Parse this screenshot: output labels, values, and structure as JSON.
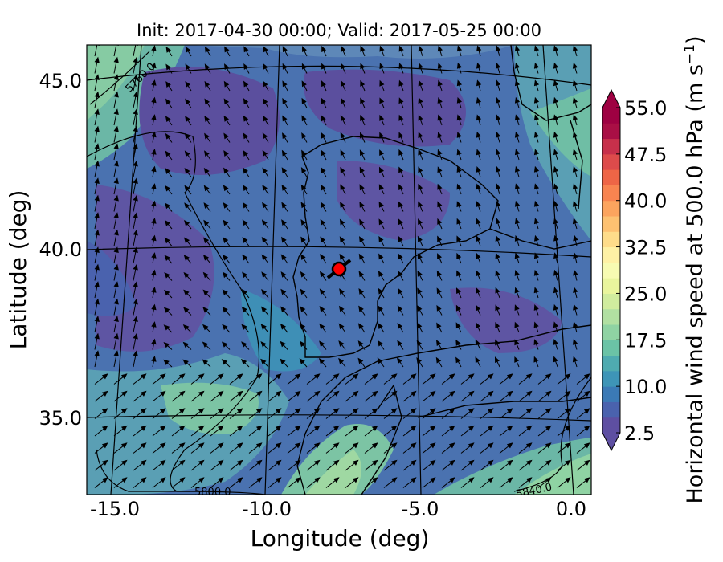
{
  "title": "Init: 2017-04-30 00:00; Valid: 2017-05-25 00:00",
  "axes": {
    "xlabel": "Longitude (deg)",
    "ylabel": "Latitude (deg)",
    "xticks": [
      "-15.0",
      "-10.0",
      "-5.0",
      "0.0"
    ],
    "yticks": [
      "45.0",
      "40.0",
      "35.0"
    ],
    "xlim": [
      -16.0,
      0.2
    ],
    "ylim": [
      32.8,
      46.1
    ]
  },
  "colorbar": {
    "label": "Horizontal wind speed at 500.0 hPa (m s$^{-1}$)",
    "label_main": "Horizontal wind speed at 500.0 hPa (m s",
    "label_sup": "−1",
    "label_close": ")",
    "ticks": [
      "55.0",
      "47.5",
      "40.0",
      "32.5",
      "25.0",
      "17.5",
      "10.0",
      "2.5"
    ],
    "tick_values": [
      55.0,
      47.5,
      40.0,
      32.5,
      25.0,
      17.5,
      10.0,
      2.5
    ],
    "range": [
      2.5,
      55.0
    ],
    "extend": "both",
    "colormap": "Spectral_r",
    "colors": [
      "#5e4fa2",
      "#4a62ae",
      "#3b7ab6",
      "#3e95b7",
      "#4fabb0",
      "#6bc3a6",
      "#8fd3a3",
      "#b1e0a2",
      "#d0ec9e",
      "#e9f59d",
      "#f7fbb2",
      "#fef1a5",
      "#fedc8a",
      "#fdc171",
      "#fca45e",
      "#f88450",
      "#ee6546",
      "#dd4b4b",
      "#c7304b",
      "#a90f45",
      "#9e0142"
    ]
  },
  "contours": [
    {
      "label": "5760.0"
    },
    {
      "label": "5800.0"
    },
    {
      "label": "5840.0"
    }
  ],
  "marker": {
    "name": "station",
    "lat": 39.4,
    "lon": -7.6,
    "color": "#ff0000"
  },
  "chart_data": {
    "type": "heatmap",
    "title": "Init: 2017-04-30 00:00; Valid: 2017-05-25 00:00",
    "xlabel": "Longitude (deg)",
    "ylabel": "Latitude (deg)",
    "xlim": [
      -16.0,
      0.2
    ],
    "ylim": [
      32.8,
      46.1
    ],
    "variable": "Horizontal wind speed at 500.0 hPa",
    "units": "m s-1",
    "levels": [
      2.5,
      10.0,
      17.5,
      25.0,
      32.5,
      40.0,
      47.5,
      55.0
    ],
    "contour_levels": [
      5760.0,
      5800.0,
      5840.0
    ],
    "marker": {
      "lat": 39.4,
      "lon": -7.6
    }
  }
}
